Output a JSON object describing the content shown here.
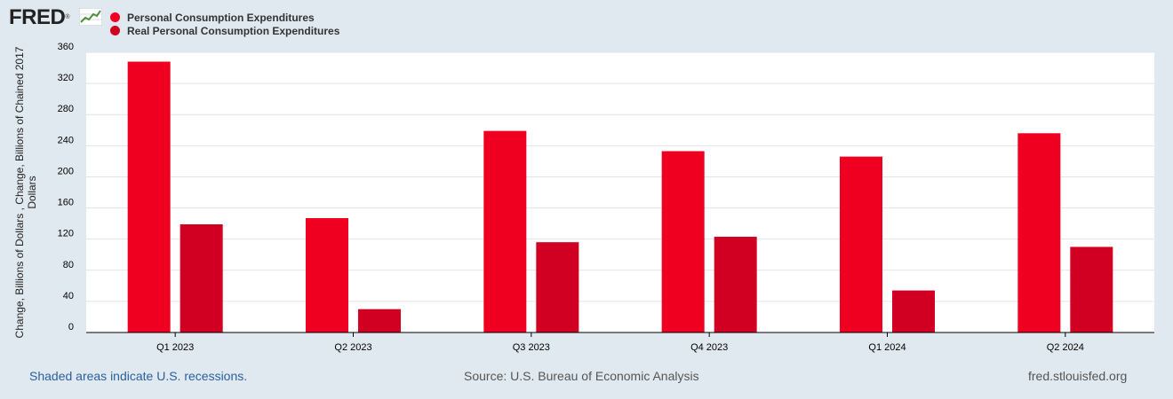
{
  "brand": {
    "logo_text": "FRED",
    "logo_mark": "®"
  },
  "colors": {
    "series1": "#ef0021",
    "series2": "#d10023",
    "background": "#e1e9f0",
    "plot_bg": "#ffffff",
    "grid": "#e4e4e4"
  },
  "chart_data": {
    "type": "bar",
    "categories": [
      "Q1 2023",
      "Q2 2023",
      "Q3 2023",
      "Q4 2023",
      "Q1 2024",
      "Q2 2024"
    ],
    "series": [
      {
        "name": "Personal Consumption Expenditures",
        "values": [
          348,
          147,
          259,
          233,
          226,
          256
        ]
      },
      {
        "name": "Real Personal Consumption Expenditures",
        "values": [
          139,
          30,
          116,
          123,
          54,
          110
        ]
      }
    ],
    "ylabel": "Change, Billions of Dollars , Change, Billions of Chained 2017 Dollars",
    "ylabel_lines": [
      "Change, Billions of Dollars , Change, Billions of Chained 2017",
      "Dollars"
    ],
    "yticks": [
      0,
      40,
      80,
      120,
      160,
      200,
      240,
      280,
      320,
      360
    ],
    "ylim": [
      0,
      360
    ],
    "grid": true,
    "legend": "top-left"
  },
  "footer": {
    "note": "Shaded areas indicate U.S. recessions.",
    "source": "Source: U.S. Bureau of Economic Analysis",
    "site": "fred.stlouisfed.org"
  }
}
